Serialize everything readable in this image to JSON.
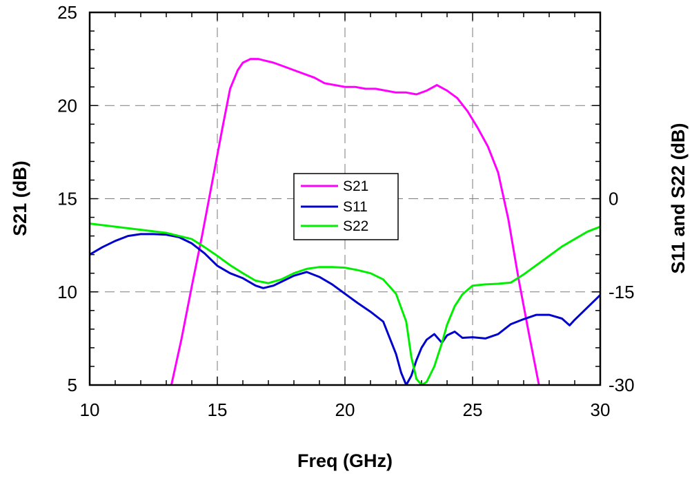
{
  "chart_data": {
    "type": "line",
    "title": "",
    "xlabel": "Freq (GHz)",
    "ylabel": "S21 (dB)",
    "y2label": "S11 and S22 (dB)",
    "xlim": [
      10,
      30
    ],
    "ylim": [
      5,
      25
    ],
    "y2lim": [
      -30,
      30
    ],
    "xticks": [
      "10",
      "15",
      "20",
      "25",
      "30"
    ],
    "yticks": [
      "5",
      "10",
      "15",
      "20",
      "25"
    ],
    "y2ticks": [
      "-30",
      "-15",
      "0"
    ],
    "y2tick_values": [
      -30,
      -15,
      0
    ],
    "grid": true,
    "legend_position": "center",
    "legend": [
      "S21",
      "S11",
      "S22"
    ],
    "series": [
      {
        "name": "S21",
        "axis": "left",
        "color": "#ff00ff",
        "x": [
          13.2,
          13.6,
          14.0,
          14.4,
          14.8,
          15.2,
          15.5,
          15.8,
          16.0,
          16.3,
          16.6,
          16.9,
          17.2,
          17.6,
          18.0,
          18.4,
          18.8,
          19.2,
          19.6,
          20.0,
          20.4,
          20.8,
          21.2,
          21.6,
          22.0,
          22.4,
          22.8,
          23.2,
          23.6,
          24.0,
          24.4,
          24.8,
          25.2,
          25.6,
          26.0,
          26.4,
          26.8,
          27.2,
          27.6
        ],
        "values": [
          5.0,
          7.5,
          10.3,
          13.0,
          15.9,
          18.8,
          20.9,
          21.9,
          22.3,
          22.5,
          22.5,
          22.4,
          22.3,
          22.1,
          21.9,
          21.7,
          21.5,
          21.2,
          21.1,
          21.0,
          21.0,
          20.9,
          20.9,
          20.8,
          20.7,
          20.7,
          20.6,
          20.8,
          21.1,
          20.8,
          20.4,
          19.7,
          18.8,
          17.8,
          16.4,
          13.9,
          10.7,
          7.8,
          5.0
        ]
      },
      {
        "name": "S11",
        "axis": "right",
        "color": "#0000cc",
        "x": [
          10.0,
          10.5,
          11.0,
          11.5,
          12.0,
          12.5,
          13.0,
          13.5,
          14.0,
          14.5,
          15.0,
          15.5,
          16.0,
          16.5,
          16.8,
          17.2,
          17.6,
          18.0,
          18.5,
          19.0,
          19.5,
          20.0,
          20.5,
          21.0,
          21.5,
          22.0,
          22.2,
          22.4,
          22.6,
          22.8,
          23.0,
          23.2,
          23.5,
          23.8,
          24.0,
          24.3,
          24.6,
          25.0,
          25.5,
          26.0,
          26.5,
          27.0,
          27.5,
          28.0,
          28.5,
          28.8,
          29.0,
          29.5,
          30.0
        ],
        "values": [
          -9.0,
          -7.8,
          -6.8,
          -6.0,
          -5.7,
          -5.7,
          -5.8,
          -6.2,
          -7.2,
          -8.8,
          -10.8,
          -12.0,
          -12.8,
          -14.0,
          -14.4,
          -14.0,
          -13.2,
          -12.4,
          -11.8,
          -12.6,
          -13.8,
          -15.3,
          -16.8,
          -18.2,
          -19.8,
          -25.0,
          -28.0,
          -30.0,
          -28.5,
          -26.0,
          -24.0,
          -22.7,
          -21.8,
          -23.2,
          -22.0,
          -21.4,
          -22.4,
          -22.3,
          -22.5,
          -21.8,
          -20.2,
          -19.4,
          -18.7,
          -18.7,
          -19.3,
          -20.4,
          -19.5,
          -17.5,
          -15.5
        ]
      },
      {
        "name": "S22",
        "axis": "right",
        "color": "#00ee00",
        "x": [
          10.0,
          11.0,
          12.0,
          13.0,
          14.0,
          14.5,
          15.0,
          15.5,
          16.0,
          16.5,
          17.0,
          17.5,
          18.0,
          18.5,
          19.0,
          19.5,
          20.0,
          20.5,
          21.0,
          21.5,
          22.0,
          22.4,
          22.6,
          22.8,
          23.0,
          23.2,
          23.5,
          23.8,
          24.0,
          24.3,
          24.6,
          25.0,
          25.5,
          26.0,
          26.5,
          27.0,
          27.5,
          28.0,
          28.5,
          29.0,
          29.5,
          30.0
        ],
        "values": [
          -4.0,
          -4.5,
          -5.0,
          -5.5,
          -6.5,
          -7.8,
          -9.2,
          -10.7,
          -12.0,
          -13.2,
          -13.6,
          -13.0,
          -12.0,
          -11.3,
          -11.0,
          -11.0,
          -11.1,
          -11.5,
          -12.0,
          -13.0,
          -15.3,
          -19.8,
          -25.5,
          -29.0,
          -30.0,
          -29.5,
          -27.0,
          -23.2,
          -20.3,
          -17.3,
          -15.4,
          -14.0,
          -13.8,
          -13.7,
          -13.5,
          -12.2,
          -10.7,
          -9.2,
          -7.7,
          -6.5,
          -5.3,
          -4.5
        ]
      }
    ]
  }
}
